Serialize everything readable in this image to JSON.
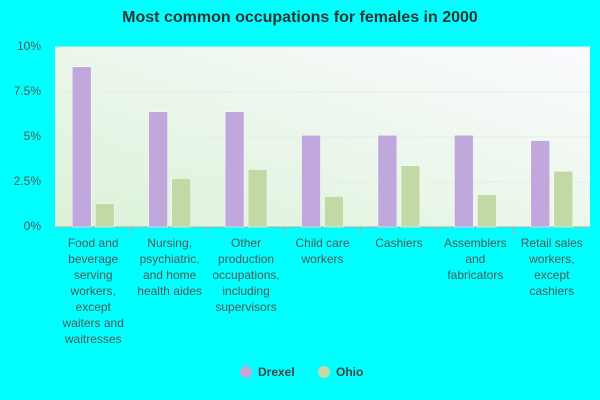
{
  "chart_data": {
    "type": "bar",
    "title": "Most common occupations for females in 2000",
    "categories": [
      "Food and beverage serving workers, except waiters and waitresses",
      "Nursing, psychiatric, and home health aides",
      "Other production occupations, including supervisors",
      "Child care workers",
      "Cashiers",
      "Assemblers and fabricators",
      "Retail sales workers, except cashiers"
    ],
    "series": [
      {
        "name": "Drexel",
        "color": "#c0a8dc",
        "values": [
          8.9,
          6.4,
          6.4,
          5.1,
          5.1,
          5.1,
          4.8
        ]
      },
      {
        "name": "Ohio",
        "color": "#c3d9a5",
        "values": [
          1.3,
          2.7,
          3.2,
          1.7,
          3.4,
          1.8,
          3.1
        ]
      }
    ],
    "ylim": [
      0,
      10
    ],
    "yticks": [
      {
        "value": 0,
        "label": "0%"
      },
      {
        "value": 2.5,
        "label": "2.5%"
      },
      {
        "value": 5,
        "label": "5%"
      },
      {
        "value": 7.5,
        "label": "7.5%"
      },
      {
        "value": 10,
        "label": "10%"
      }
    ],
    "grid": true
  }
}
